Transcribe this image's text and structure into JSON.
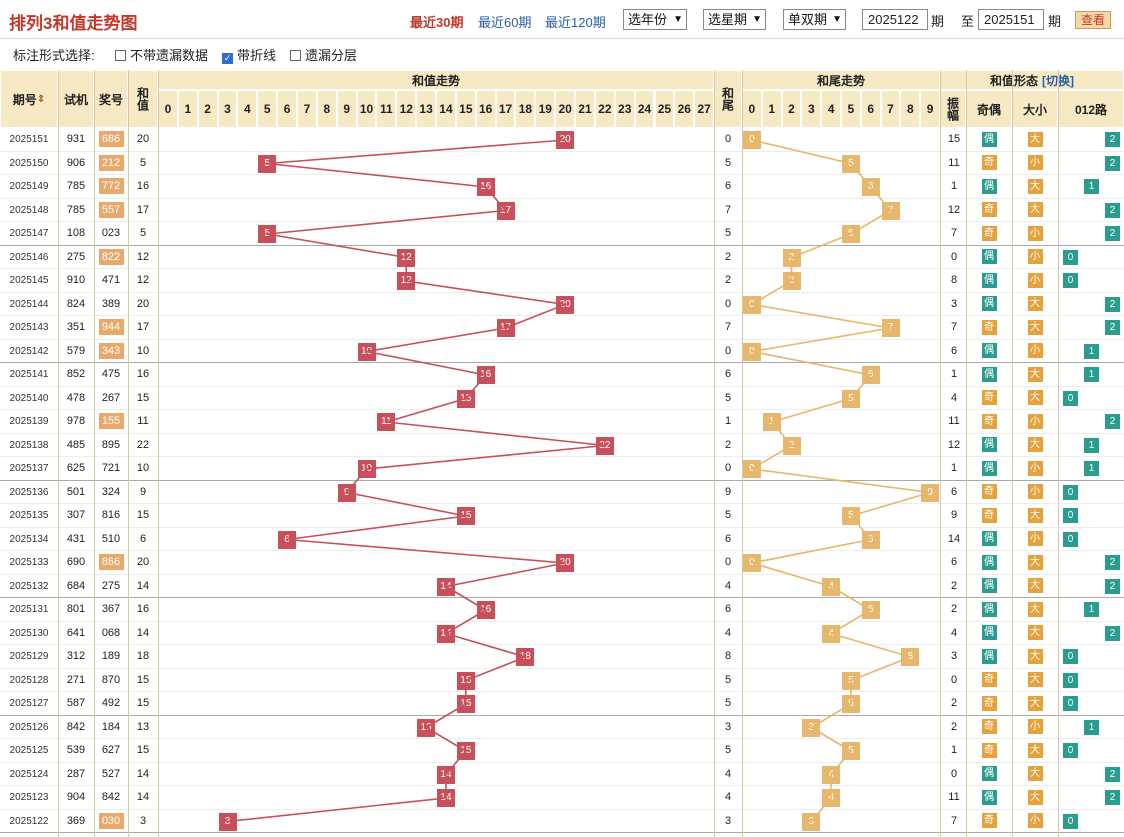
{
  "title": "排列3和值走势图",
  "periods": [
    "最近30期",
    "最近60期",
    "最近120期"
  ],
  "selects": [
    "选年份",
    "选星期",
    "单双期"
  ],
  "range": {
    "from": "2025122",
    "period_label": "期",
    "to_label": "至",
    "to": "2025151",
    "period_label2": "期"
  },
  "query": "查看",
  "options": {
    "label": "标注形式选择:",
    "items": [
      {
        "label": "不带遗漏数据",
        "checked": false
      },
      {
        "label": "带折线",
        "checked": true
      },
      {
        "label": "遗漏分层",
        "checked": false
      }
    ]
  },
  "headers": {
    "issue": "期号",
    "sort_icon": "sort-icon",
    "test": "试机",
    "draw": "奖号",
    "sum": "和值",
    "sum_trend": "和值走势",
    "tail": "和尾",
    "tail_trend": "和尾走势",
    "form": "和值形态",
    "switch": "[切换]",
    "amp": "振幅",
    "odd_even": "奇偶",
    "big_small": "大小",
    "route": "012路"
  },
  "sum_cols": [
    "0",
    "1",
    "2",
    "3",
    "4",
    "5",
    "6",
    "7",
    "8",
    "9",
    "10",
    "11",
    "12",
    "13",
    "14",
    "15",
    "16",
    "17",
    "18",
    "19",
    "20",
    "21",
    "22",
    "23",
    "24",
    "25",
    "26",
    "27"
  ],
  "tail_cols": [
    "0",
    "1",
    "2",
    "3",
    "4",
    "5",
    "6",
    "7",
    "8",
    "9"
  ],
  "rows": [
    {
      "issue": "2025151",
      "test": "931",
      "draw": "686",
      "hl": true,
      "sum": "20",
      "tail": "0",
      "amp": "15",
      "oe": "偶",
      "bs": "大",
      "r": "2"
    },
    {
      "issue": "2025150",
      "test": "906",
      "draw": "212",
      "hl": true,
      "sum": "5",
      "tail": "5",
      "amp": "11",
      "oe": "奇",
      "bs": "小",
      "r": "2"
    },
    {
      "issue": "2025149",
      "test": "785",
      "draw": "772",
      "hl": true,
      "sum": "16",
      "tail": "6",
      "amp": "1",
      "oe": "偶",
      "bs": "大",
      "r": "1"
    },
    {
      "issue": "2025148",
      "test": "785",
      "draw": "557",
      "hl": true,
      "sum": "17",
      "tail": "7",
      "amp": "12",
      "oe": "奇",
      "bs": "大",
      "r": "2"
    },
    {
      "issue": "2025147",
      "test": "108",
      "draw": "023",
      "hl": false,
      "sum": "5",
      "tail": "5",
      "amp": "7",
      "oe": "奇",
      "bs": "小",
      "r": "2"
    },
    {
      "issue": "2025146",
      "test": "275",
      "draw": "822",
      "hl": true,
      "sum": "12",
      "tail": "2",
      "amp": "0",
      "oe": "偶",
      "bs": "小",
      "r": "0"
    },
    {
      "issue": "2025145",
      "test": "910",
      "draw": "471",
      "hl": false,
      "sum": "12",
      "tail": "2",
      "amp": "8",
      "oe": "偶",
      "bs": "小",
      "r": "0"
    },
    {
      "issue": "2025144",
      "test": "824",
      "draw": "389",
      "hl": false,
      "sum": "20",
      "tail": "0",
      "amp": "3",
      "oe": "偶",
      "bs": "大",
      "r": "2"
    },
    {
      "issue": "2025143",
      "test": "351",
      "draw": "944",
      "hl": true,
      "sum": "17",
      "tail": "7",
      "amp": "7",
      "oe": "奇",
      "bs": "大",
      "r": "2"
    },
    {
      "issue": "2025142",
      "test": "579",
      "draw": "343",
      "hl": true,
      "sum": "10",
      "tail": "0",
      "amp": "6",
      "oe": "偶",
      "bs": "小",
      "r": "1"
    },
    {
      "issue": "2025141",
      "test": "852",
      "draw": "475",
      "hl": false,
      "sum": "16",
      "tail": "6",
      "amp": "1",
      "oe": "偶",
      "bs": "大",
      "r": "1"
    },
    {
      "issue": "2025140",
      "test": "478",
      "draw": "267",
      "hl": false,
      "sum": "15",
      "tail": "5",
      "amp": "4",
      "oe": "奇",
      "bs": "大",
      "r": "0"
    },
    {
      "issue": "2025139",
      "test": "978",
      "draw": "155",
      "hl": true,
      "sum": "11",
      "tail": "1",
      "amp": "11",
      "oe": "奇",
      "bs": "小",
      "r": "2"
    },
    {
      "issue": "2025138",
      "test": "485",
      "draw": "895",
      "hl": false,
      "sum": "22",
      "tail": "2",
      "amp": "12",
      "oe": "偶",
      "bs": "大",
      "r": "1"
    },
    {
      "issue": "2025137",
      "test": "625",
      "draw": "721",
      "hl": false,
      "sum": "10",
      "tail": "0",
      "amp": "1",
      "oe": "偶",
      "bs": "小",
      "r": "1"
    },
    {
      "issue": "2025136",
      "test": "501",
      "draw": "324",
      "hl": false,
      "sum": "9",
      "tail": "9",
      "amp": "6",
      "oe": "奇",
      "bs": "小",
      "r": "0"
    },
    {
      "issue": "2025135",
      "test": "307",
      "draw": "816",
      "hl": false,
      "sum": "15",
      "tail": "5",
      "amp": "9",
      "oe": "奇",
      "bs": "大",
      "r": "0"
    },
    {
      "issue": "2025134",
      "test": "431",
      "draw": "510",
      "hl": false,
      "sum": "6",
      "tail": "6",
      "amp": "14",
      "oe": "偶",
      "bs": "小",
      "r": "0"
    },
    {
      "issue": "2025133",
      "test": "690",
      "draw": "866",
      "hl": true,
      "sum": "20",
      "tail": "0",
      "amp": "6",
      "oe": "偶",
      "bs": "大",
      "r": "2"
    },
    {
      "issue": "2025132",
      "test": "684",
      "draw": "275",
      "hl": false,
      "sum": "14",
      "tail": "4",
      "amp": "2",
      "oe": "偶",
      "bs": "大",
      "r": "2"
    },
    {
      "issue": "2025131",
      "test": "801",
      "draw": "367",
      "hl": false,
      "sum": "16",
      "tail": "6",
      "amp": "2",
      "oe": "偶",
      "bs": "大",
      "r": "1"
    },
    {
      "issue": "2025130",
      "test": "641",
      "draw": "068",
      "hl": false,
      "sum": "14",
      "tail": "4",
      "amp": "4",
      "oe": "偶",
      "bs": "大",
      "r": "2"
    },
    {
      "issue": "2025129",
      "test": "312",
      "draw": "189",
      "hl": false,
      "sum": "18",
      "tail": "8",
      "amp": "3",
      "oe": "偶",
      "bs": "大",
      "r": "0"
    },
    {
      "issue": "2025128",
      "test": "271",
      "draw": "870",
      "hl": false,
      "sum": "15",
      "tail": "5",
      "amp": "0",
      "oe": "奇",
      "bs": "大",
      "r": "0"
    },
    {
      "issue": "2025127",
      "test": "587",
      "draw": "492",
      "hl": false,
      "sum": "15",
      "tail": "5",
      "amp": "2",
      "oe": "奇",
      "bs": "大",
      "r": "0"
    },
    {
      "issue": "2025126",
      "test": "842",
      "draw": "184",
      "hl": false,
      "sum": "13",
      "tail": "3",
      "amp": "2",
      "oe": "奇",
      "bs": "小",
      "r": "1"
    },
    {
      "issue": "2025125",
      "test": "539",
      "draw": "627",
      "hl": false,
      "sum": "15",
      "tail": "5",
      "amp": "1",
      "oe": "奇",
      "bs": "大",
      "r": "0"
    },
    {
      "issue": "2025124",
      "test": "287",
      "draw": "527",
      "hl": false,
      "sum": "14",
      "tail": "4",
      "amp": "0",
      "oe": "偶",
      "bs": "大",
      "r": "2"
    },
    {
      "issue": "2025123",
      "test": "904",
      "draw": "842",
      "hl": false,
      "sum": "14",
      "tail": "4",
      "amp": "11",
      "oe": "偶",
      "bs": "大",
      "r": "2"
    },
    {
      "issue": "2025122",
      "test": "369",
      "draw": "030",
      "hl": true,
      "sum": "3",
      "tail": "3",
      "amp": "7",
      "oe": "奇",
      "bs": "小",
      "r": "0"
    }
  ],
  "labels": {
    "odd": "奇",
    "even": "偶",
    "big": "大",
    "small": "小"
  },
  "colors": {
    "sum_ball": "#c8505a",
    "tail_ball": "#e6b76c",
    "header_bg": "#f7e9c4",
    "title": "#c0392b",
    "even_tag": "#2a9d8f",
    "odd_tag": "#e6a23c"
  }
}
